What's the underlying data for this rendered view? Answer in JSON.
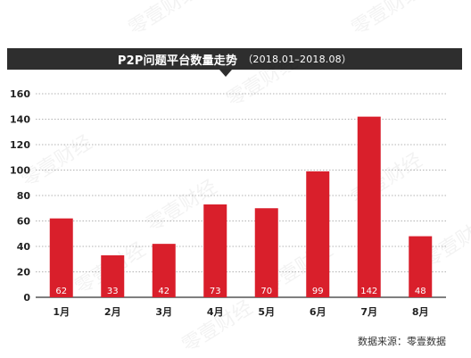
{
  "chart_data": {
    "type": "bar",
    "title": "P2P问题平台数量走势",
    "subtitle": "（2018.01–2018.08）",
    "categories": [
      "1月",
      "2月",
      "3月",
      "4月",
      "5月",
      "6月",
      "7月",
      "8月"
    ],
    "values": [
      62,
      33,
      42,
      73,
      70,
      99,
      142,
      48
    ],
    "ylim": [
      0,
      160
    ],
    "yticks": [
      0,
      20,
      40,
      60,
      80,
      100,
      120,
      140,
      160
    ],
    "grid": true,
    "xlabel": "",
    "ylabel": "",
    "bar_color": "#d91f2b",
    "label_color": "#ffffff"
  },
  "source": "数据来源：零壹数据",
  "watermark": "零壹财经"
}
